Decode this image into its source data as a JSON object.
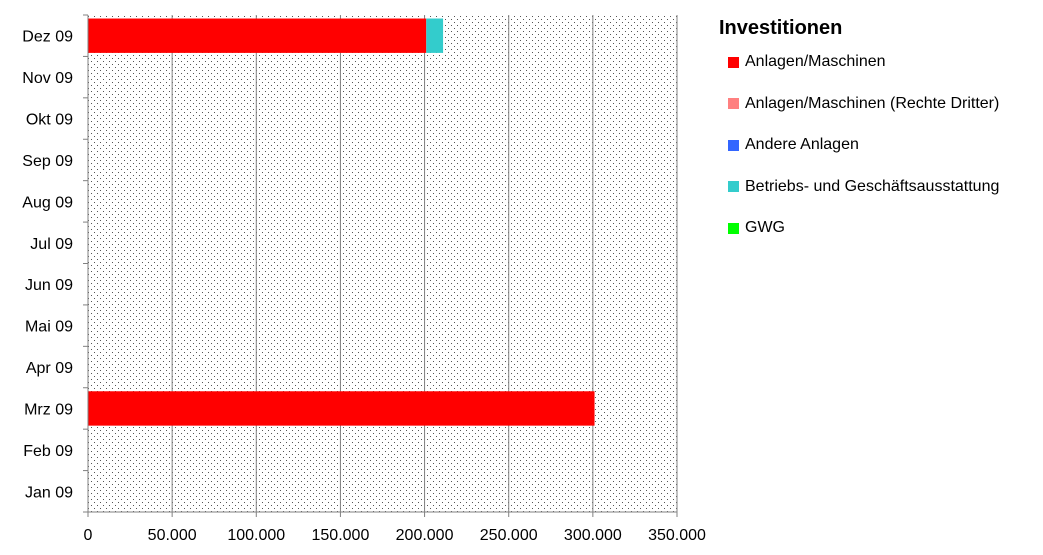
{
  "chart_data": {
    "type": "bar",
    "orientation": "horizontal",
    "stacked": true,
    "title": "",
    "xlabel": "",
    "ylabel": "",
    "categories": [
      "Jan 09",
      "Feb 09",
      "Mrz 09",
      "Apr 09",
      "Mai 09",
      "Jun 09",
      "Jul 09",
      "Aug 09",
      "Sep 09",
      "Okt 09",
      "Nov 09",
      "Dez 09"
    ],
    "series": [
      {
        "name": "Anlagen/Maschinen",
        "color": "#ff0000",
        "values": [
          0,
          0,
          301000,
          0,
          0,
          0,
          0,
          0,
          0,
          0,
          0,
          201000
        ]
      },
      {
        "name": "Anlagen/Maschinen (Rechte Dritter)",
        "color": "#ff8080",
        "values": [
          0,
          0,
          0,
          0,
          0,
          0,
          0,
          0,
          0,
          0,
          0,
          0
        ]
      },
      {
        "name": "Andere Anlagen",
        "color": "#3366ff",
        "values": [
          0,
          0,
          0,
          0,
          0,
          0,
          0,
          0,
          0,
          0,
          0,
          0
        ]
      },
      {
        "name": "Betriebs- und Geschäftsausstattung",
        "color": "#33cccc",
        "values": [
          0,
          0,
          0,
          0,
          0,
          0,
          0,
          0,
          0,
          0,
          0,
          10000
        ]
      },
      {
        "name": "GWG",
        "color": "#00ff00",
        "values": [
          0,
          0,
          0,
          0,
          0,
          0,
          0,
          0,
          0,
          0,
          0,
          0
        ]
      }
    ],
    "xlim": [
      0,
      350000
    ],
    "xticks": [
      0,
      50000,
      100000,
      150000,
      200000,
      250000,
      300000,
      350000
    ],
    "xtick_labels": [
      "0",
      "50.000",
      "100.000",
      "150.000",
      "200.000",
      "250.000",
      "300.000",
      "350.000"
    ],
    "grid": true,
    "plot_background": "dotted",
    "legend": {
      "title": "Investitionen",
      "placement": "right"
    }
  }
}
